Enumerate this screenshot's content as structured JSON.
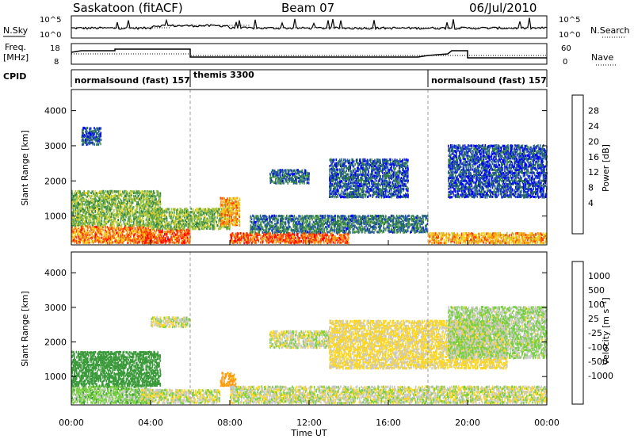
{
  "header": {
    "station": "Saskatoon (fitACF)",
    "beam": "Beam 07",
    "date": "06/Jul/2010"
  },
  "nsky_panel": {
    "left_label": "N.Sky",
    "right_label": "N.Search",
    "left_ticks": [
      "10^5",
      "10^0"
    ],
    "right_ticks": [
      "10^5",
      "10^0"
    ]
  },
  "freq_panel": {
    "left_label_line1": "Freq.",
    "left_label_line2": "[MHz]",
    "right_label": "Nave",
    "left_ticks": [
      "18",
      "8"
    ],
    "right_ticks": [
      "60",
      "0"
    ]
  },
  "cpid_panel": {
    "label": "CPID",
    "modes": [
      {
        "name": "normalsound (fast) 157",
        "start_hour": 0
      },
      {
        "name": "themis 3300",
        "start_hour": 6
      },
      {
        "name": "normalsound (fast) 157",
        "start_hour": 18
      }
    ]
  },
  "power_colorbar": {
    "label": "Power [dB]",
    "ticks": [
      "28",
      "24",
      "20",
      "16",
      "12",
      "8",
      "4"
    ],
    "colors": [
      "#0000ff",
      "#1f4fb0",
      "#2f7f3f",
      "#5aa352",
      "#a8c83c",
      "#f7d21c",
      "#f79a14",
      "#ff3c00",
      "#ff0000"
    ]
  },
  "velocity_colorbar": {
    "label": "Velocity [m s⁻¹]",
    "ticks": [
      "1000",
      "500",
      "100",
      "25",
      "-25",
      "-100",
      "-500",
      "-1000"
    ],
    "colors": [
      "#1e3cb4",
      "#2f7f6f",
      "#3a9a3a",
      "#78d040",
      "#c8c8c8",
      "#c8c8c8",
      "#ffd71a",
      "#ff9a10",
      "#ff4a00",
      "#ff0000"
    ]
  },
  "chart_data": [
    {
      "type": "heatmap",
      "name": "Power",
      "ylabel": "Slant Range [km]",
      "ylim": [
        180,
        4600
      ],
      "yticks": [
        1000,
        2000,
        3000,
        4000
      ],
      "xlim": [
        0,
        24
      ],
      "xticks": [
        "00:00",
        "04:00",
        "08:00",
        "12:00",
        "16:00",
        "20:00",
        "00:00"
      ],
      "units": "dB",
      "regions": [
        {
          "t0": 0.0,
          "t1": 4.0,
          "r0": 200,
          "r1": 700,
          "value": 24
        },
        {
          "t0": 0.0,
          "t1": 4.5,
          "r0": 700,
          "r1": 1700,
          "value": 14
        },
        {
          "t0": 0.5,
          "t1": 1.5,
          "r0": 3000,
          "r1": 3500,
          "value": 6
        },
        {
          "t0": 3.5,
          "t1": 6.0,
          "r0": 200,
          "r1": 600,
          "value": 26
        },
        {
          "t0": 4.0,
          "t1": 8.0,
          "r0": 600,
          "r1": 1200,
          "value": 14
        },
        {
          "t0": 7.5,
          "t1": 8.5,
          "r0": 700,
          "r1": 1500,
          "value": 22
        },
        {
          "t0": 8.0,
          "t1": 14.0,
          "r0": 200,
          "r1": 500,
          "value": 26
        },
        {
          "t0": 9.0,
          "t1": 18.0,
          "r0": 500,
          "r1": 1000,
          "value": 8
        },
        {
          "t0": 10.0,
          "t1": 12.0,
          "r0": 1900,
          "r1": 2300,
          "value": 7
        },
        {
          "t0": 13.0,
          "t1": 17.0,
          "r0": 1500,
          "r1": 2600,
          "value": 6
        },
        {
          "t0": 18.0,
          "t1": 24.0,
          "r0": 200,
          "r1": 500,
          "value": 22
        },
        {
          "t0": 19.0,
          "t1": 24.0,
          "r0": 1500,
          "r1": 3000,
          "value": 5
        }
      ]
    },
    {
      "type": "heatmap",
      "name": "Velocity",
      "ylabel": "Slant Range [km]",
      "xlabel": "Time UT",
      "ylim": [
        180,
        4600
      ],
      "yticks": [
        1000,
        2000,
        3000,
        4000
      ],
      "xlim": [
        0,
        24
      ],
      "xticks": [
        "00:00",
        "04:00",
        "08:00",
        "12:00",
        "16:00",
        "20:00",
        "00:00"
      ],
      "units": "m/s",
      "regions": [
        {
          "t0": 0.0,
          "t1": 4.0,
          "r0": 200,
          "r1": 700,
          "value": 60
        },
        {
          "t0": 0.0,
          "t1": 4.5,
          "r0": 700,
          "r1": 1700,
          "value": 250
        },
        {
          "t0": 3.5,
          "t1": 7.5,
          "r0": 200,
          "r1": 600,
          "value": 0
        },
        {
          "t0": 4.0,
          "t1": 6.0,
          "r0": 2400,
          "r1": 2700,
          "value": 0
        },
        {
          "t0": 7.5,
          "t1": 8.3,
          "r0": 700,
          "r1": 1100,
          "value": -150
        },
        {
          "t0": 8.0,
          "t1": 24.0,
          "r0": 200,
          "r1": 700,
          "value": 0
        },
        {
          "t0": 10.0,
          "t1": 13.0,
          "r0": 1800,
          "r1": 2300,
          "value": 0
        },
        {
          "t0": 13.0,
          "t1": 22.0,
          "r0": 1200,
          "r1": 2600,
          "value": -40
        },
        {
          "t0": 19.0,
          "t1": 24.0,
          "r0": 1500,
          "r1": 3000,
          "value": 30
        }
      ]
    }
  ]
}
